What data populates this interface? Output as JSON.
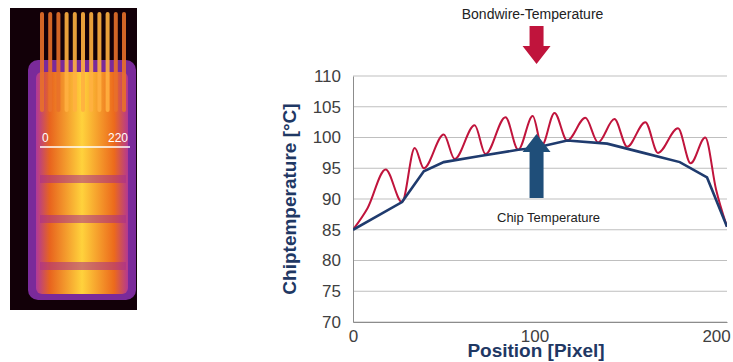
{
  "chart_data": {
    "type": "line",
    "x_label": "Position [Pixel]",
    "y_label": "Chiptemperature [°C]",
    "xlim": [
      0,
      206
    ],
    "xticks": [
      0,
      100,
      200
    ],
    "ylim": [
      70,
      110
    ],
    "yticks": [
      70,
      75,
      80,
      85,
      90,
      95,
      100,
      105,
      110
    ],
    "grid": true,
    "series": [
      {
        "name": "Bondwire-Temperature",
        "color": "#c0143c",
        "x": [
          0,
          8,
          18,
          27,
          34,
          39,
          50,
          56,
          67,
          73,
          84,
          91,
          99,
          104,
          111,
          118,
          128,
          135,
          144,
          151,
          161,
          168,
          179,
          186,
          194,
          200,
          206
        ],
        "values": [
          85,
          88.5,
          94.8,
          89.5,
          98.3,
          95,
          100.5,
          96.5,
          102,
          97.3,
          103.3,
          98,
          103.5,
          98.7,
          104,
          99.5,
          103.2,
          99.2,
          103,
          98.5,
          102.5,
          97.5,
          101.5,
          95.8,
          100,
          91.5,
          85.5
        ]
      },
      {
        "name": "Chip Temperature",
        "color": "#1f3b6e",
        "x": [
          0,
          27,
          39,
          50,
          70,
          91,
          100,
          118,
          140,
          160,
          180,
          195,
          206
        ],
        "values": [
          85,
          89.5,
          94.5,
          96,
          97,
          98,
          98.3,
          99.5,
          99,
          97.5,
          96,
          93.5,
          85.5
        ]
      }
    ],
    "annotations": [
      {
        "text": "0"
      },
      {
        "text": "220"
      }
    ]
  }
}
